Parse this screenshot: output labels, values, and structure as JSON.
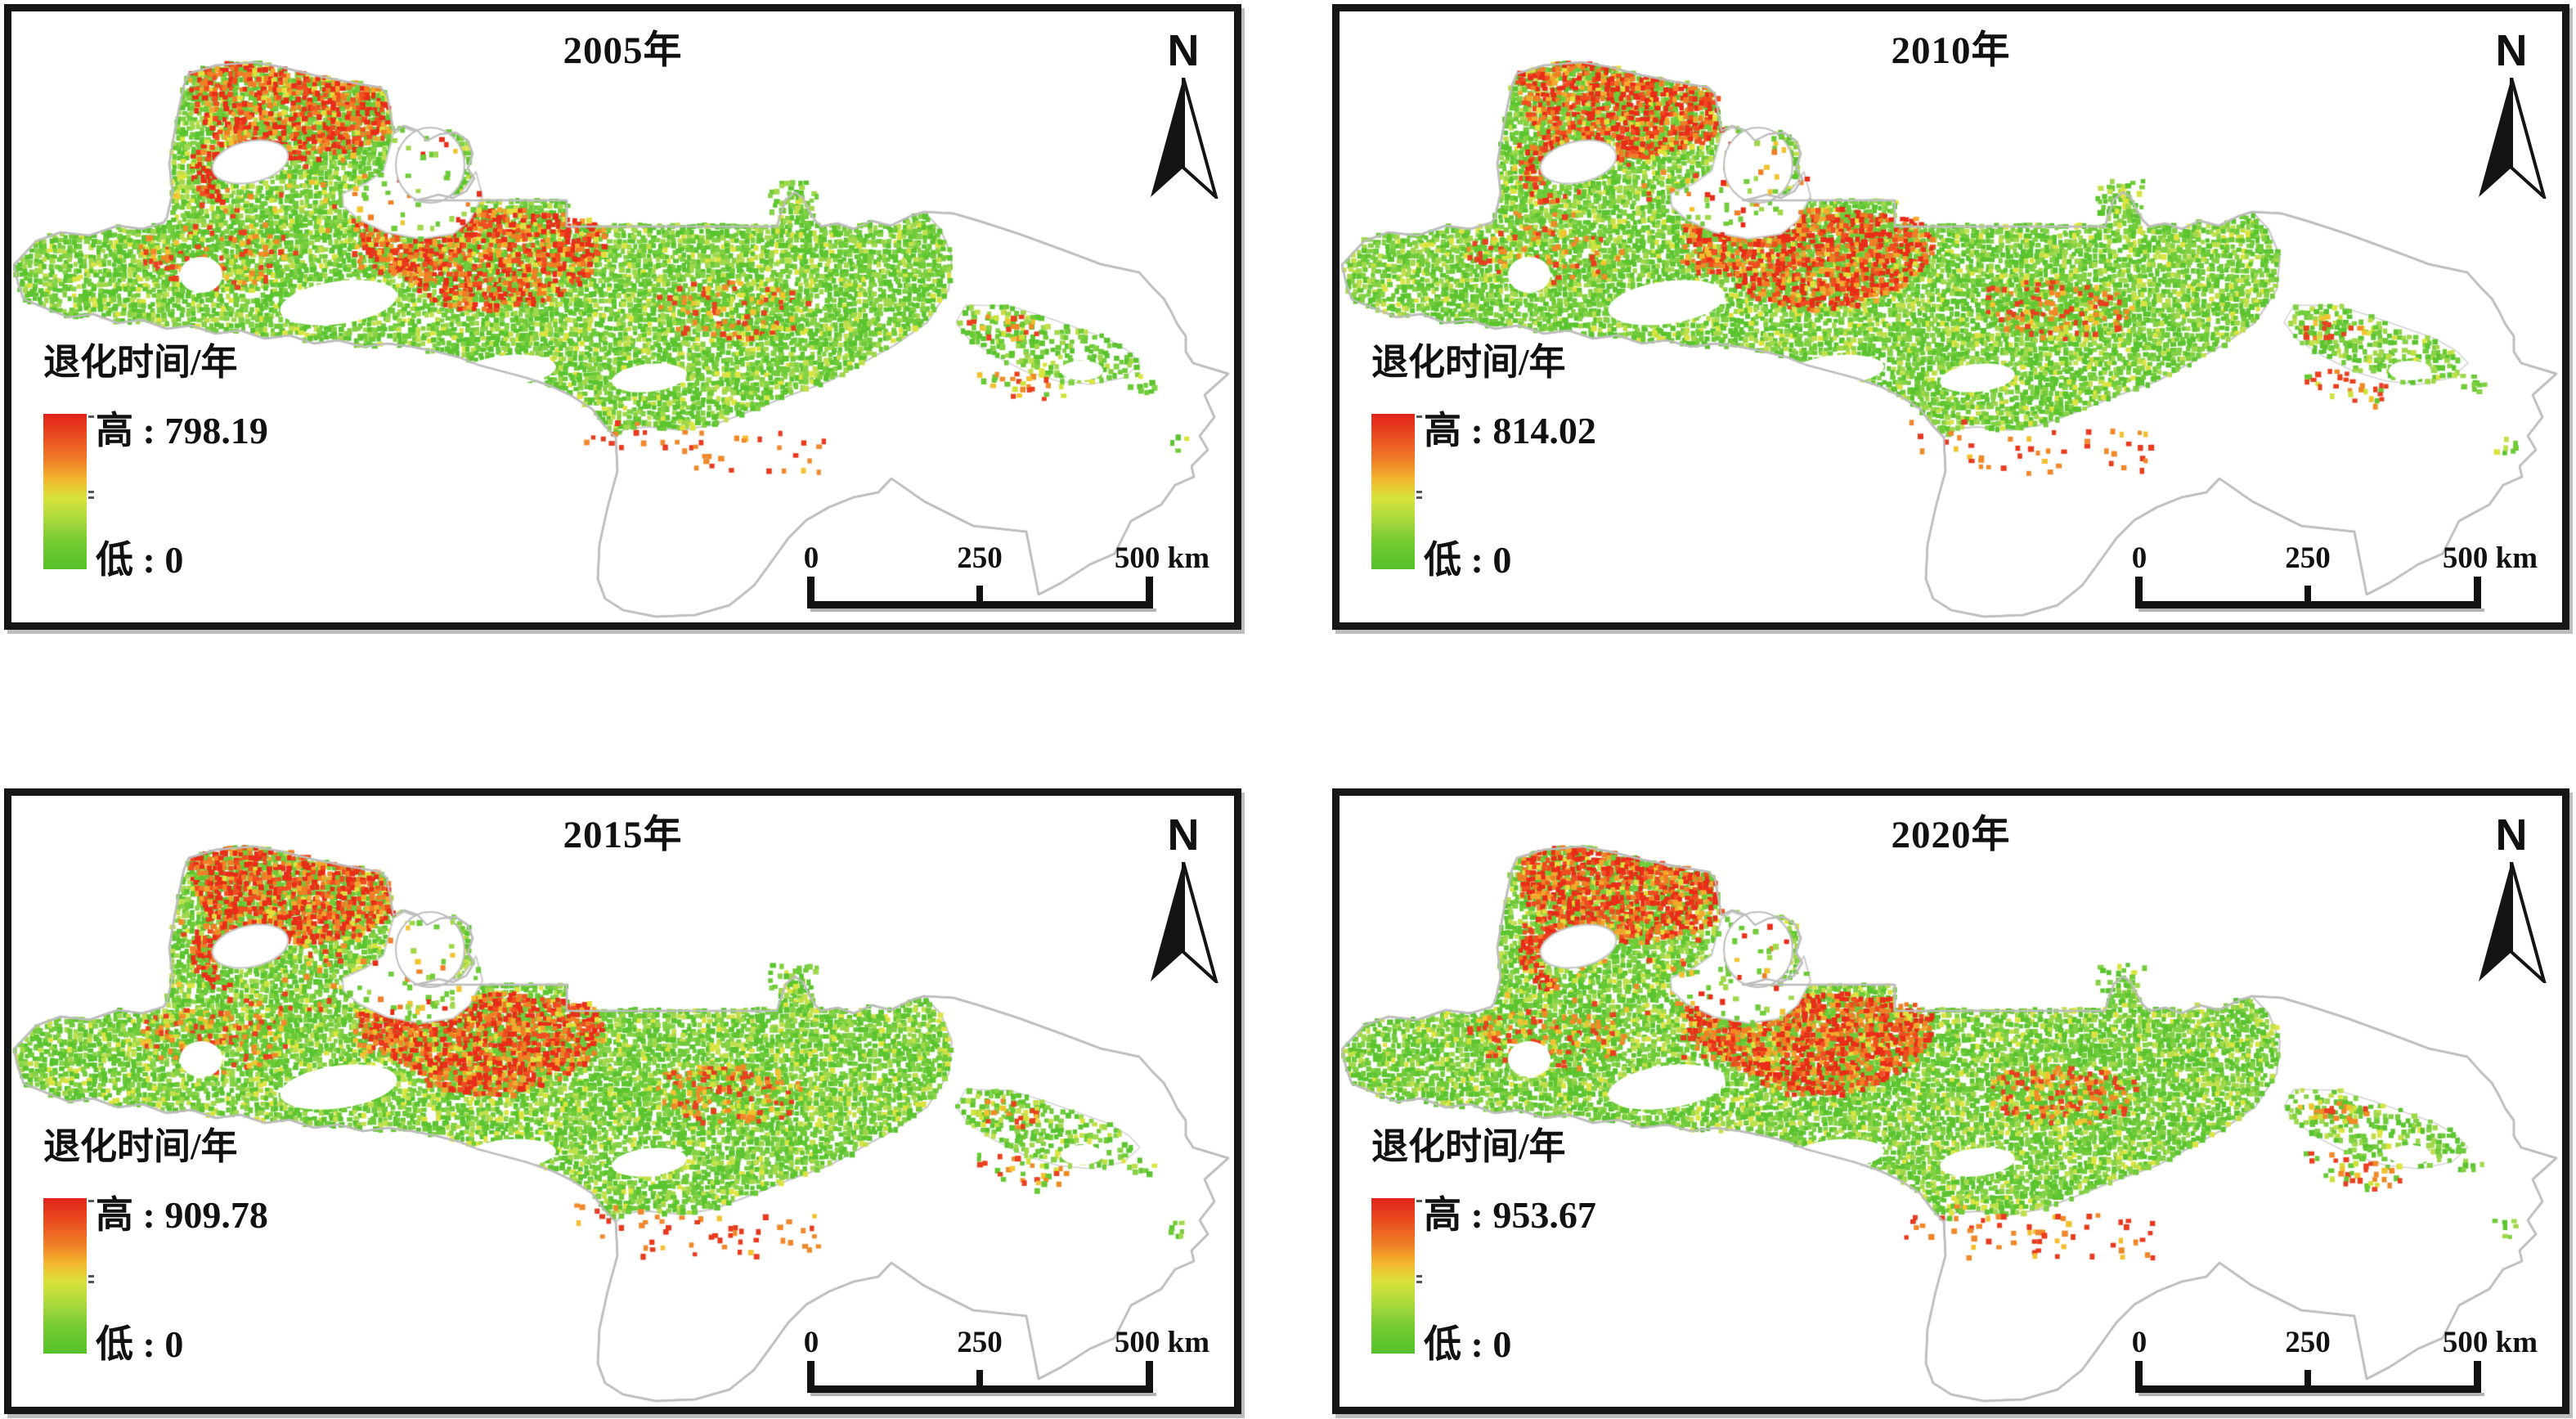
{
  "shared": {
    "north_label": "N",
    "scale_ticks": [
      "0",
      "250",
      "500 km"
    ],
    "legend_title": "退化时间/年",
    "low_label": "低 : 0"
  },
  "panels": [
    {
      "title": "2005年",
      "high_label": "高 : 798.19",
      "high_value": 798.19,
      "low_value": 0
    },
    {
      "title": "2010年",
      "high_label": "高 : 814.02",
      "high_value": 814.02,
      "low_value": 0
    },
    {
      "title": "2015年",
      "high_label": "高 : 909.78",
      "high_value": 909.78,
      "low_value": 0
    },
    {
      "title": "2020年",
      "high_label": "高 : 953.67",
      "high_value": 953.67,
      "low_value": 0
    }
  ],
  "legend_colors": {
    "high": "#e2231a",
    "mid": "#d8e23c",
    "low": "#53c228"
  },
  "boundary_color": "#bdbdbd"
}
